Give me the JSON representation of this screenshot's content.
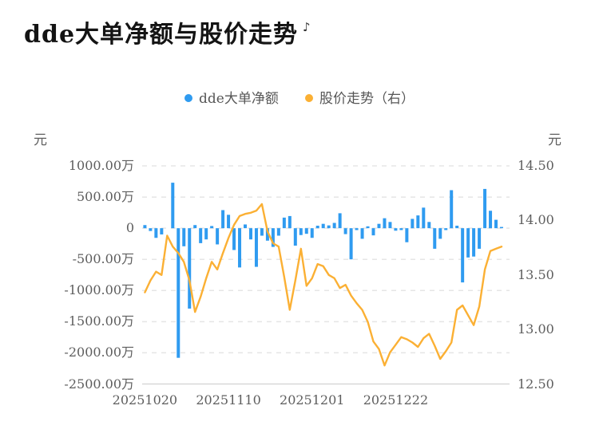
{
  "title": "dde大单净额与股价走势",
  "title_mark": "♪",
  "legend": {
    "items": [
      {
        "label": "dde大单净额",
        "color": "#2f9bf0"
      },
      {
        "label": "股价走势（右）",
        "color": "#fbb034"
      }
    ]
  },
  "chart_data": {
    "type": "bar",
    "subtype": "bar+line combo, dual y-axis",
    "title": "dde大单净额与股价走势",
    "grid": "horizontal dashed gridlines",
    "legend_position": "top-center",
    "x_count": 65,
    "x_tick_positions": [
      0,
      15,
      30,
      45
    ],
    "x_tick_labels": [
      "20251020",
      "20251110",
      "20251201",
      "20251222"
    ],
    "left_axis": {
      "unit": "元",
      "tick_labels": [
        "1000.00万",
        "500.00万",
        "0",
        "-500.00万",
        "-1000.00万",
        "-1500.00万",
        "-2000.00万",
        "-2500.00万"
      ],
      "max_wan": 1000,
      "min_wan": -2500
    },
    "right_axis": {
      "unit": "元",
      "tick_labels": [
        "14.50",
        "14.00",
        "13.50",
        "13.00",
        "12.50"
      ],
      "max": 14.5,
      "min": 12.5
    },
    "series": [
      {
        "name": "dde大单净额",
        "type": "bar",
        "axis": "left",
        "unit": "万元",
        "color": "#2f9bf0",
        "values": [
          50,
          -45,
          -155,
          -100,
          0,
          730,
          -2080,
          -290,
          -1290,
          50,
          -240,
          -180,
          35,
          -260,
          290,
          215,
          -350,
          -630,
          60,
          -180,
          -620,
          -120,
          -200,
          -300,
          -120,
          170,
          195,
          -280,
          -110,
          -90,
          -155,
          40,
          70,
          45,
          85,
          240,
          -95,
          -500,
          -30,
          -170,
          30,
          -115,
          70,
          160,
          100,
          -40,
          -30,
          -225,
          150,
          205,
          330,
          100,
          -330,
          -170,
          -30,
          610,
          40,
          -870,
          -470,
          -455,
          -330,
          630,
          280,
          135,
          20
        ]
      },
      {
        "name": "股价走势（右）",
        "type": "line",
        "axis": "right",
        "unit": "元",
        "color": "#fbb034",
        "values": [
          13.34,
          13.45,
          13.53,
          13.5,
          13.86,
          13.76,
          13.7,
          13.62,
          13.45,
          13.16,
          13.3,
          13.47,
          13.62,
          13.55,
          13.7,
          13.84,
          13.96,
          14.04,
          14.06,
          14.07,
          14.09,
          14.15,
          13.9,
          13.79,
          13.76,
          13.48,
          13.18,
          13.45,
          13.74,
          13.4,
          13.47,
          13.6,
          13.58,
          13.5,
          13.47,
          13.38,
          13.41,
          13.31,
          13.24,
          13.18,
          13.07,
          12.89,
          12.82,
          12.67,
          12.79,
          12.86,
          12.93,
          12.91,
          12.88,
          12.84,
          12.92,
          12.96,
          12.85,
          12.73,
          12.8,
          12.88,
          13.18,
          13.22,
          13.13,
          13.04,
          13.21,
          13.55,
          13.72,
          13.74,
          13.76
        ]
      }
    ],
    "colors": {
      "bar": "#2f9bf0",
      "line": "#fbb034",
      "gridline": "#e5e5e5",
      "axis_line": "#d8d8d8",
      "label_text": "#5e5e5e",
      "title_text": "#141414"
    }
  }
}
